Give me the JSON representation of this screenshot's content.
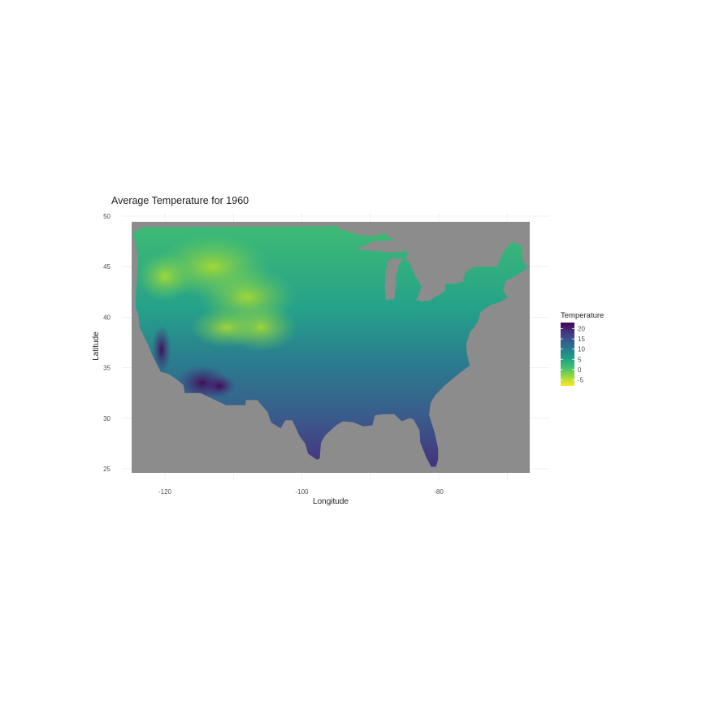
{
  "chart_data": {
    "type": "heatmap",
    "title": "Average Temperature for 1960",
    "xlabel": "Longitude",
    "ylabel": "Latitude",
    "xlim": [
      -125,
      -66
    ],
    "ylim": [
      24.5,
      50
    ],
    "x_ticks": [
      "-120",
      "-100",
      "-80"
    ],
    "x_tick_values": [
      -120,
      -100,
      -80
    ],
    "y_ticks": [
      "25",
      "30",
      "35",
      "40",
      "45",
      "50"
    ],
    "y_tick_values": [
      25,
      30,
      35,
      40,
      45,
      50
    ],
    "grid": true,
    "background_color": "#8c8c8c",
    "legend": {
      "title": "Temperature",
      "placement": "right",
      "labels": [
        "20",
        "15",
        "10",
        "5",
        "0",
        "-5"
      ],
      "values": [
        20,
        15,
        10,
        5,
        0,
        -5
      ],
      "range": [
        -8,
        23
      ],
      "palette": "viridis-reversed",
      "colors": [
        "#fde725",
        "#a0da39",
        "#4ac16d",
        "#1fa187",
        "#277f8e",
        "#365c8d",
        "#46327e",
        "#440154"
      ]
    }
  }
}
